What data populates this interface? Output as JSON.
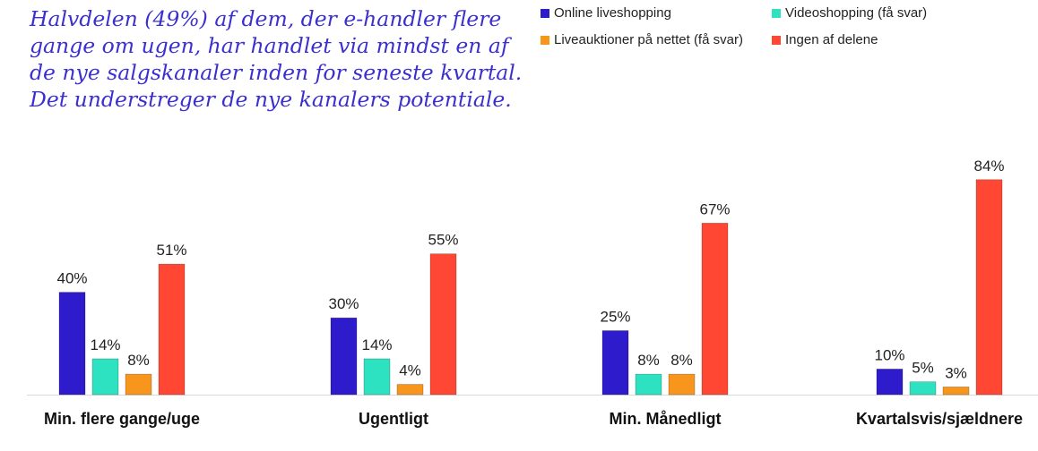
{
  "headline": {
    "lines": [
      "Halvdelen (49%) af dem, der e-handler flere",
      "gange om ugen, har handlet via mindst en af",
      "de nye salgskanaler inden for seneste kvartal.",
      "Det understreger de nye kanalers potentiale."
    ]
  },
  "legend": {
    "items": [
      {
        "label": "Online liveshopping",
        "color": "#2e1bcc"
      },
      {
        "label": "Videoshopping (få svar)",
        "color": "#2de2c0"
      },
      {
        "label": "Liveauktioner på nettet (få svar)",
        "color": "#f7951d"
      },
      {
        "label": "Ingen af delene",
        "color": "#ff4733"
      }
    ]
  },
  "chart_data": {
    "type": "bar",
    "categories": [
      "Min. flere gange/uge",
      "Ugentligt",
      "Min. Månedligt",
      "Kvartalsvis/sjældnere"
    ],
    "series": [
      {
        "name": "Online liveshopping",
        "color": "#2e1bcc",
        "values": [
          40,
          30,
          25,
          10
        ],
        "labels": [
          "40%",
          "30%",
          "25%",
          "10%"
        ]
      },
      {
        "name": "Videoshopping (få svar)",
        "color": "#2de2c0",
        "values": [
          14,
          14,
          8,
          5
        ],
        "labels": [
          "14%",
          "14%",
          "8%",
          "5%"
        ]
      },
      {
        "name": "Liveauktioner på nettet (få svar)",
        "color": "#f7951d",
        "values": [
          8,
          4,
          8,
          3
        ],
        "labels": [
          "8%",
          "4%",
          "8%",
          "3%"
        ]
      },
      {
        "name": "Ingen af delene",
        "color": "#ff4733",
        "values": [
          51,
          55,
          67,
          84
        ],
        "labels": [
          "51%",
          "55%",
          "67%",
          "84%"
        ]
      }
    ],
    "ylim": [
      0,
      100
    ],
    "unit": "%",
    "title": "",
    "xlabel": "",
    "ylabel": ""
  }
}
